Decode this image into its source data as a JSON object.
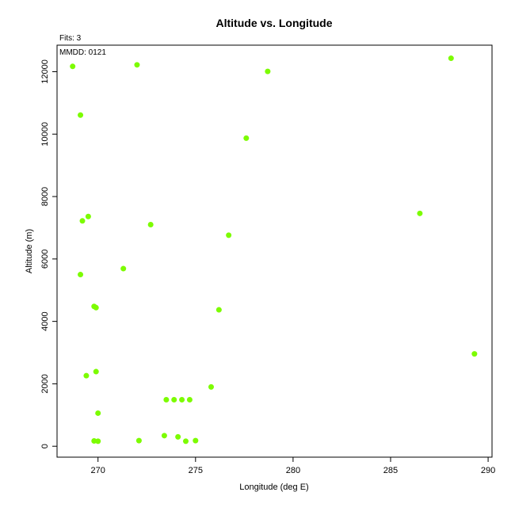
{
  "chart_data": {
    "type": "scatter",
    "title": "Altitude vs. Longitude",
    "xlabel": "Longitude (deg E)",
    "ylabel": "Altitude (m)",
    "xlim": [
      267.9,
      290.2
    ],
    "ylim": [
      -350,
      12850
    ],
    "xticks": [
      270,
      275,
      280,
      285,
      290
    ],
    "yticks": [
      0,
      2000,
      4000,
      6000,
      8000,
      10000,
      12000
    ],
    "grid": false,
    "point_color": "#7cfc00",
    "annotations": [
      "Fits: 3",
      "MMDD: 0121"
    ],
    "points": [
      {
        "x": 268.7,
        "y": 12170
      },
      {
        "x": 269.1,
        "y": 10610
      },
      {
        "x": 269.2,
        "y": 7220
      },
      {
        "x": 269.5,
        "y": 7360
      },
      {
        "x": 269.1,
        "y": 5500
      },
      {
        "x": 269.8,
        "y": 4480
      },
      {
        "x": 269.9,
        "y": 4440
      },
      {
        "x": 269.4,
        "y": 2260
      },
      {
        "x": 269.9,
        "y": 2390
      },
      {
        "x": 270.0,
        "y": 1060
      },
      {
        "x": 269.8,
        "y": 170
      },
      {
        "x": 270.0,
        "y": 160
      },
      {
        "x": 272.0,
        "y": 12220
      },
      {
        "x": 271.3,
        "y": 5690
      },
      {
        "x": 272.7,
        "y": 7100
      },
      {
        "x": 272.1,
        "y": 180
      },
      {
        "x": 273.4,
        "y": 340
      },
      {
        "x": 273.5,
        "y": 1490
      },
      {
        "x": 273.9,
        "y": 1490
      },
      {
        "x": 274.1,
        "y": 300
      },
      {
        "x": 274.3,
        "y": 1490
      },
      {
        "x": 274.5,
        "y": 160
      },
      {
        "x": 274.7,
        "y": 1490
      },
      {
        "x": 275.0,
        "y": 180
      },
      {
        "x": 275.8,
        "y": 1900
      },
      {
        "x": 276.2,
        "y": 4370
      },
      {
        "x": 276.7,
        "y": 6760
      },
      {
        "x": 277.6,
        "y": 9870
      },
      {
        "x": 278.7,
        "y": 12010
      },
      {
        "x": 286.5,
        "y": 7460
      },
      {
        "x": 288.1,
        "y": 12430
      },
      {
        "x": 289.3,
        "y": 2960
      }
    ]
  }
}
